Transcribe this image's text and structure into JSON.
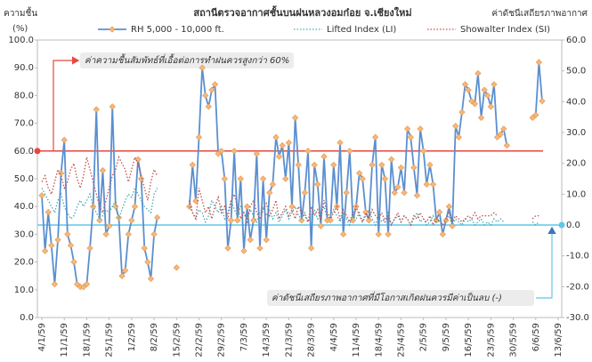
{
  "chart_data": {
    "type": "line",
    "title": "สถานีตรวจอากาศชั้นบนฝนหลวงอมก๋อย  จ.เชียงใหม่",
    "y_label": "ความชื้น",
    "y_unit": "(%)",
    "y2_label": "ค่าดัชนีเสถียรภาพอากาศ",
    "categories": [
      "4/1/59",
      null,
      null,
      null,
      null,
      null,
      null,
      "11/1/59",
      null,
      null,
      null,
      null,
      null,
      null,
      "18/1/59",
      null,
      null,
      null,
      null,
      null,
      null,
      "25/1/59",
      null,
      null,
      null,
      null,
      null,
      null,
      "1/2/59",
      null,
      null,
      null,
      null,
      null,
      null,
      "8/2/59",
      null,
      null,
      null,
      null,
      null,
      null,
      "15/2/59",
      null,
      null,
      null,
      null,
      null,
      null,
      "22/2/59",
      null,
      null,
      null,
      null,
      null,
      null,
      "29/2/59",
      null,
      null,
      null,
      null,
      null,
      null,
      "7/3/59",
      null,
      null,
      null,
      null,
      null,
      null,
      "14/3/59",
      null,
      null,
      null,
      null,
      null,
      null,
      "21/3/59",
      null,
      null,
      null,
      null,
      null,
      null,
      "28/3/59",
      null,
      null,
      null,
      null,
      null,
      null,
      "4/4/59",
      null,
      null,
      null,
      null,
      null,
      null,
      "11/4/59",
      null,
      null,
      null,
      null,
      null,
      null,
      "18/4/59",
      null,
      null,
      null,
      null,
      null,
      null,
      "25/4/59",
      null,
      null,
      null,
      null,
      null,
      null,
      "2/5/59",
      null,
      null,
      null,
      null,
      null,
      null,
      "9/5/59",
      null,
      null,
      null,
      null,
      null,
      null,
      "16/5/59",
      null,
      null,
      null,
      null,
      null,
      null,
      "23/5/59",
      null,
      null,
      null,
      null,
      null,
      null,
      "30/5/59",
      null,
      null,
      null,
      null,
      null,
      null,
      "6/6/59",
      null,
      null,
      null,
      null,
      null,
      null,
      "13/6/59"
    ],
    "series": [
      {
        "name": "RH 5,000 - 10,000 ft.",
        "color": "#5b8fd0",
        "marker_color": "#f5b87a",
        "style": "solid",
        "axis": "y",
        "values": [
          44,
          24,
          38,
          26,
          12,
          28,
          52,
          64,
          30,
          26,
          20,
          12,
          11,
          11,
          12,
          25,
          40,
          75,
          35,
          53,
          30,
          33,
          76,
          40,
          36,
          15,
          17,
          30,
          35,
          40,
          57,
          50,
          25,
          20,
          14,
          30,
          36,
          null,
          null,
          null,
          null,
          null,
          18,
          null,
          null,
          null,
          40,
          55,
          42,
          65,
          90,
          80,
          76,
          82,
          84,
          59,
          60,
          50,
          25,
          35,
          60,
          35,
          50,
          24,
          40,
          28,
          35,
          59,
          25,
          50,
          28,
          45,
          48,
          65,
          58,
          62,
          50,
          63,
          40,
          72,
          55,
          35,
          45,
          60,
          25,
          55,
          48,
          33,
          58,
          35,
          35,
          55,
          40,
          63,
          30,
          45,
          60,
          35,
          40,
          52,
          50,
          38,
          35,
          55,
          65,
          30,
          55,
          50,
          30,
          57,
          45,
          47,
          54,
          45,
          68,
          65,
          54,
          44,
          68,
          60,
          48,
          55,
          48,
          35,
          38,
          30,
          35,
          40,
          33,
          69,
          65,
          74,
          84,
          82,
          78,
          77,
          88,
          72,
          82,
          80,
          76,
          84,
          65,
          66,
          68,
          62,
          null,
          null,
          null,
          null,
          null,
          null,
          null,
          72,
          73,
          92,
          78,
          null,
          null,
          null,
          null,
          null
        ]
      },
      {
        "name": "Lifted Index (LI)",
        "color": "#4aa8b0",
        "style": "dotted",
        "axis": "y2",
        "values": [
          12,
          10,
          8,
          6,
          4,
          8,
          10,
          6,
          4,
          2,
          3,
          6,
          8,
          6,
          8,
          10,
          6,
          4,
          2,
          3,
          5,
          4,
          6,
          8,
          2,
          5,
          8,
          10,
          9,
          12,
          10,
          8,
          6,
          5,
          4,
          10,
          12,
          null,
          null,
          null,
          null,
          null,
          null,
          null,
          null,
          null,
          6,
          4,
          2,
          5,
          4,
          1,
          3,
          8,
          6,
          4,
          6,
          2,
          4,
          8,
          5,
          3,
          6,
          4,
          2,
          5,
          3,
          1,
          4,
          6,
          3,
          5,
          2,
          4,
          1,
          3,
          5,
          2,
          4,
          6,
          3,
          2,
          4,
          1,
          3,
          5,
          2,
          4,
          6,
          2,
          3,
          5,
          3,
          1,
          4,
          2,
          0,
          3,
          2,
          4,
          1,
          3,
          5,
          2,
          0,
          3,
          1,
          2,
          4,
          0,
          2,
          3,
          1,
          3,
          2,
          0,
          2,
          4,
          1,
          2,
          0,
          1,
          3,
          1,
          2,
          0,
          1,
          3,
          0,
          2,
          1,
          0,
          2,
          1,
          2,
          0,
          1,
          2,
          0,
          1,
          0,
          2,
          1,
          2,
          1,
          null,
          null,
          null,
          null,
          null,
          null,
          null,
          null,
          1,
          0,
          1,
          null,
          null,
          null,
          null,
          null,
          null
        ]
      },
      {
        "name": "Showalter Index (SI)",
        "color": "#c0504d",
        "style": "dotted",
        "axis": "y2",
        "values": [
          14,
          16,
          12,
          10,
          14,
          18,
          16,
          12,
          14,
          18,
          20,
          15,
          12,
          16,
          22,
          18,
          14,
          10,
          6,
          4,
          8,
          12,
          16,
          18,
          22,
          20,
          18,
          14,
          18,
          22,
          20,
          16,
          12,
          8,
          14,
          18,
          16,
          null,
          null,
          null,
          null,
          null,
          null,
          null,
          null,
          null,
          8,
          4,
          2,
          12,
          8,
          4,
          6,
          2,
          6,
          9,
          4,
          6,
          2,
          8,
          10,
          6,
          2,
          4,
          1,
          6,
          8,
          4,
          2,
          5,
          7,
          3,
          5,
          8,
          2,
          4,
          6,
          3,
          5,
          2,
          6,
          4,
          3,
          1,
          6,
          3,
          5,
          2,
          8,
          4,
          2,
          4,
          6,
          2,
          5,
          3,
          1,
          4,
          6,
          3,
          1,
          4,
          2,
          5,
          3,
          2,
          4,
          1,
          3,
          0,
          2,
          4,
          1,
          3,
          2,
          0,
          3,
          2,
          4,
          2,
          1,
          3,
          0,
          2,
          1,
          0,
          2,
          4,
          1,
          3,
          2,
          1,
          2,
          3,
          2,
          4,
          2,
          3,
          3,
          3,
          3,
          4,
          3,
          null,
          null,
          null,
          null,
          null,
          null,
          null,
          null,
          null,
          null,
          2,
          3,
          3,
          null,
          null,
          null,
          null,
          null,
          null
        ]
      }
    ],
    "ylim": [
      0,
      100
    ],
    "yticks": [
      {
        "value": 0,
        "label": "0.0"
      },
      {
        "value": 10,
        "label": "10.0"
      },
      {
        "value": 20,
        "label": "20.0"
      },
      {
        "value": 30,
        "label": "30.0"
      },
      {
        "value": 40,
        "label": "40.0"
      },
      {
        "value": 50,
        "label": "50.0"
      },
      {
        "value": 60,
        "label": "60.0"
      },
      {
        "value": 70,
        "label": "70.0"
      },
      {
        "value": 80,
        "label": "80.0"
      },
      {
        "value": 90,
        "label": "90.0"
      },
      {
        "value": 100,
        "label": "100.0"
      }
    ],
    "y2lim": [
      -30,
      60
    ],
    "y2ticks": [
      {
        "value": -30,
        "label": "-30.0"
      },
      {
        "value": -20,
        "label": "-20.0"
      },
      {
        "value": -10,
        "label": "-10.0"
      },
      {
        "value": 0,
        "label": "0.0"
      },
      {
        "value": 10,
        "label": "10.0"
      },
      {
        "value": 20,
        "label": "20.0"
      },
      {
        "value": 30,
        "label": "30.0"
      },
      {
        "value": 40,
        "label": "40.0"
      },
      {
        "value": 50,
        "label": "50.0"
      },
      {
        "value": 60,
        "label": "60.0"
      }
    ],
    "grid": false,
    "legend": "top",
    "reference_lines": [
      {
        "axis": "y",
        "value": 60,
        "color": "#e8473f"
      },
      {
        "axis": "y2",
        "value": 0,
        "color": "#5ec8e8"
      }
    ],
    "annotations": [
      {
        "text": "ค่าความชื้นสัมพัทธ์ที่เอื้อต่อการทำฝนควรสูงกว่า 60%",
        "color": "#e8473f"
      },
      {
        "text": "ค่าดัชนีเสถียรภาพอากาศที่มีโอกาสเกิดฝนควรมีค่าเป็นลบ (-)",
        "color": "#3a78b8"
      }
    ]
  }
}
